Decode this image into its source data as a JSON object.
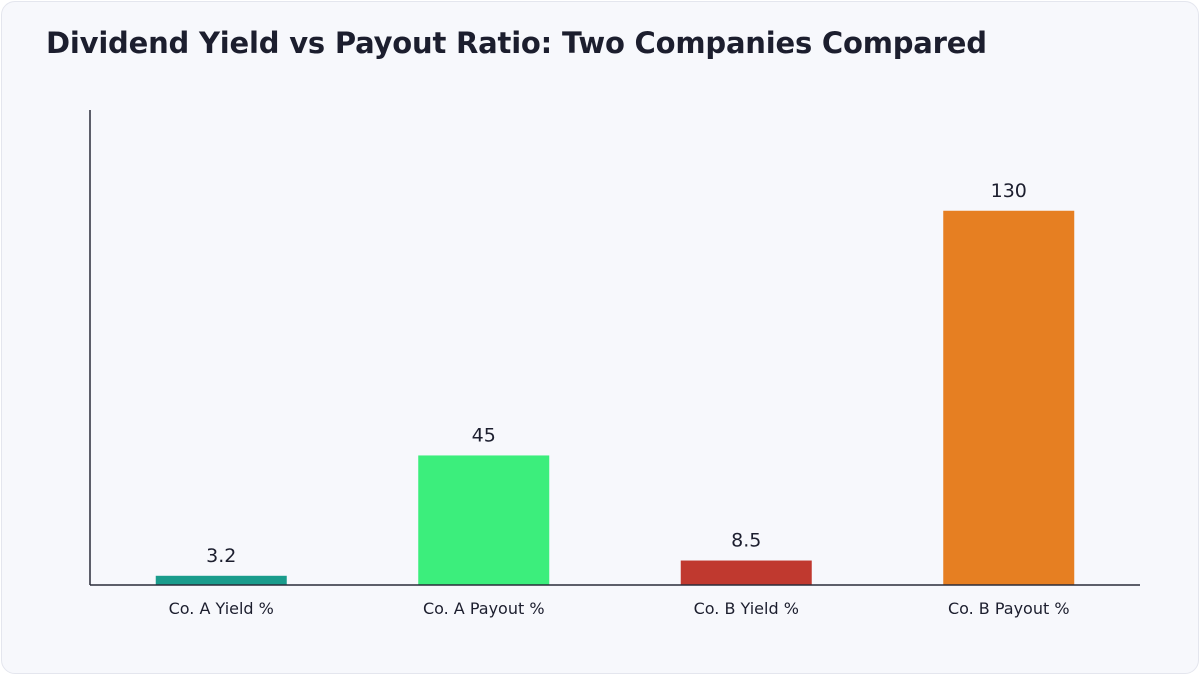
{
  "chart_data": {
    "type": "bar",
    "title": "Dividend Yield vs Payout Ratio: Two Companies Compared",
    "xlabel": "",
    "ylabel": "",
    "categories": [
      "Co. A Yield %",
      "Co. A Payout %",
      "Co. B Yield %",
      "Co. B Payout %"
    ],
    "values": [
      3.2,
      45,
      8.5,
      130
    ],
    "value_labels": [
      "3.2",
      "45",
      "8.5",
      "130"
    ],
    "colors": [
      "#1a9c8c",
      "#3cee7c",
      "#c0392f",
      "#e67f22"
    ],
    "ylim": [
      0,
      165
    ],
    "grid": false,
    "legend": "none"
  }
}
